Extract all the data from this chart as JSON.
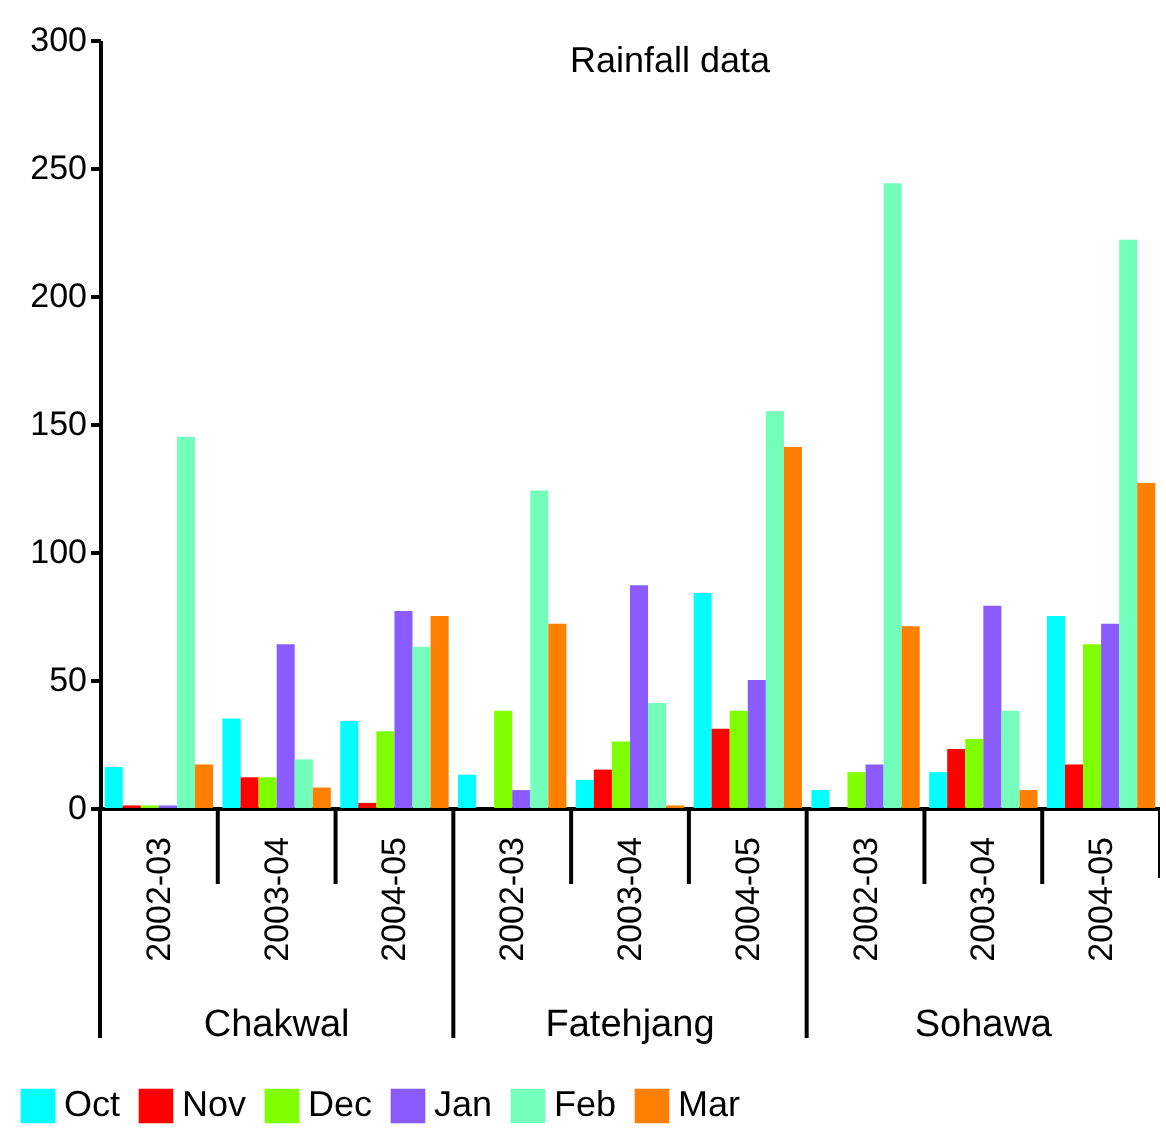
{
  "chart_data": {
    "type": "bar",
    "title": "Rainfall data",
    "categories": [
      "2002-03",
      "2003-04",
      "2004-05",
      "2002-03",
      "2003-04",
      "2004-05",
      "2002-03",
      "2003-04",
      "2004-05"
    ],
    "series": [
      {
        "name": "Oct",
        "color": "#00ffff",
        "values": [
          16,
          35,
          34,
          13,
          11,
          84,
          7,
          14,
          75
        ]
      },
      {
        "name": "Nov",
        "color": "#ff0000",
        "values": [
          1,
          12,
          2,
          0,
          15,
          31,
          0,
          23,
          17
        ]
      },
      {
        "name": "Dec",
        "color": "#80ff00",
        "values": [
          1,
          12,
          30,
          38,
          26,
          38,
          14,
          27,
          64
        ]
      },
      {
        "name": "Jan",
        "color": "#8a5cff",
        "values": [
          1,
          64,
          77,
          7,
          87,
          50,
          17,
          79,
          72
        ]
      },
      {
        "name": "Feb",
        "color": "#73ffbb",
        "values": [
          145,
          19,
          63,
          124,
          41,
          155,
          244,
          38,
          222
        ]
      },
      {
        "name": "Mar",
        "color": "#ff8000",
        "values": [
          17,
          8,
          75,
          72,
          1,
          141,
          71,
          7,
          127
        ]
      }
    ],
    "annotations": [
      "Chakwal",
      "Fatehjang",
      "Sohawa"
    ],
    "ylim": [
      0,
      300
    ],
    "yticks": [
      0,
      50,
      100,
      150,
      200,
      250,
      300
    ],
    "grid": false,
    "legend": "bottom"
  }
}
